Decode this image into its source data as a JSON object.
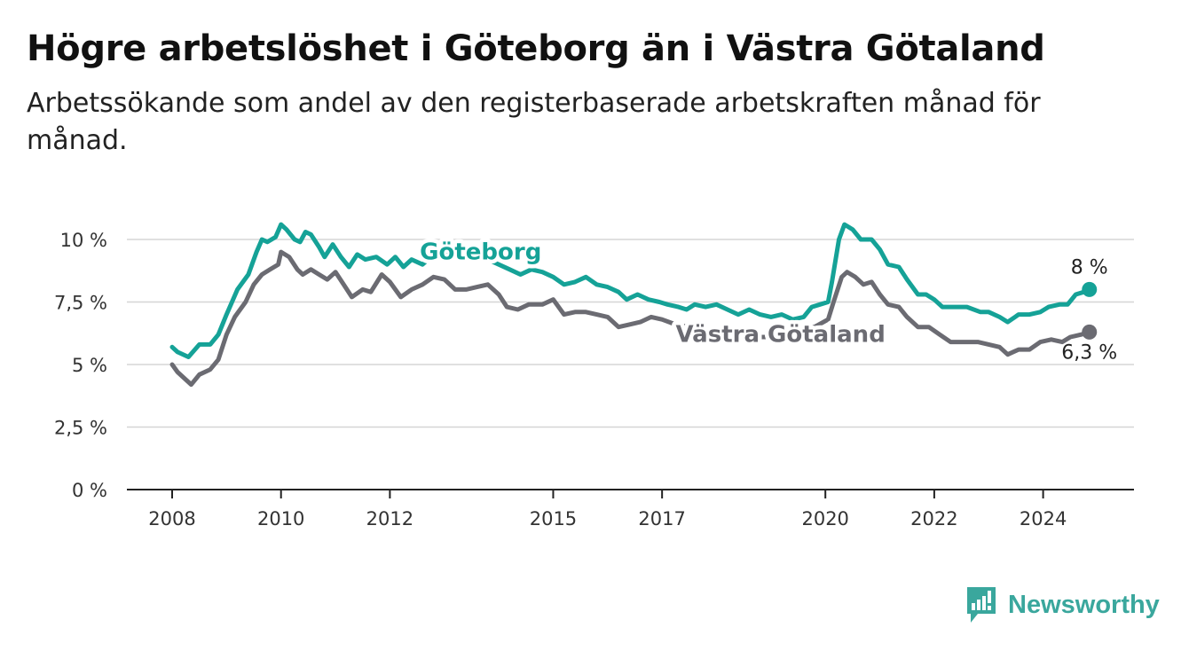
{
  "title": "Högre arbetslöshet i Göteborg än i Västra Götaland",
  "subtitle": "Arbetssökande som andel av den registerbaserade arbetskraften månad för månad.",
  "brand": {
    "name": "Newsworthy",
    "color": "#3aa79d"
  },
  "colors": {
    "goteborg": "#15a297",
    "vastra": "#6b6b72",
    "grid": "#d6d6d6",
    "axis": "#222222"
  },
  "chart_data": {
    "type": "line",
    "title": "Högre arbetslöshet i Göteborg än i Västra Götaland",
    "subtitle": "Arbetssökande som andel av den registerbaserade arbetskraften månad för månad.",
    "xlabel": "",
    "ylabel": "",
    "xlim": [
      2007.5,
      2025.8
    ],
    "ylim": [
      0,
      10
    ],
    "yticks": [
      0,
      2.5,
      5,
      7.5,
      10
    ],
    "ytick_labels": [
      "0 %",
      "2,5 %",
      "5 %",
      "7,5 %",
      "10 %"
    ],
    "xticks": [
      2008,
      2010,
      2012,
      2015,
      2017,
      2020,
      2022,
      2024
    ],
    "xtick_labels": [
      "2008",
      "2010",
      "2012",
      "2015",
      "2017",
      "2020",
      "2022",
      "2024"
    ],
    "grid": true,
    "series": [
      {
        "name": "Göteborg",
        "color": "#15a297",
        "end_label": "8 %",
        "points": [
          [
            2008.0,
            5.7
          ],
          [
            2008.1,
            5.5
          ],
          [
            2008.3,
            5.3
          ],
          [
            2008.5,
            5.8
          ],
          [
            2008.7,
            5.8
          ],
          [
            2008.85,
            6.2
          ],
          [
            2009.0,
            7.0
          ],
          [
            2009.2,
            8.0
          ],
          [
            2009.4,
            8.6
          ],
          [
            2009.55,
            9.5
          ],
          [
            2009.65,
            10.0
          ],
          [
            2009.75,
            9.9
          ],
          [
            2009.9,
            10.1
          ],
          [
            2010.0,
            10.6
          ],
          [
            2010.1,
            10.4
          ],
          [
            2010.25,
            10.0
          ],
          [
            2010.35,
            9.9
          ],
          [
            2010.45,
            10.3
          ],
          [
            2010.55,
            10.2
          ],
          [
            2010.7,
            9.7
          ],
          [
            2010.8,
            9.3
          ],
          [
            2010.95,
            9.8
          ],
          [
            2011.1,
            9.3
          ],
          [
            2011.25,
            8.9
          ],
          [
            2011.4,
            9.4
          ],
          [
            2011.55,
            9.2
          ],
          [
            2011.75,
            9.3
          ],
          [
            2011.95,
            9.0
          ],
          [
            2012.1,
            9.3
          ],
          [
            2012.25,
            8.9
          ],
          [
            2012.4,
            9.2
          ],
          [
            2012.6,
            9.0
          ],
          [
            2012.8,
            9.4
          ],
          [
            2013.0,
            9.3
          ],
          [
            2013.2,
            9.5
          ],
          [
            2013.4,
            9.6
          ],
          [
            2013.6,
            9.4
          ],
          [
            2013.8,
            9.2
          ],
          [
            2014.0,
            9.0
          ],
          [
            2014.2,
            8.8
          ],
          [
            2014.4,
            8.6
          ],
          [
            2014.6,
            8.8
          ],
          [
            2014.8,
            8.7
          ],
          [
            2015.0,
            8.5
          ],
          [
            2015.2,
            8.2
          ],
          [
            2015.4,
            8.3
          ],
          [
            2015.6,
            8.5
          ],
          [
            2015.8,
            8.2
          ],
          [
            2016.0,
            8.1
          ],
          [
            2016.2,
            7.9
          ],
          [
            2016.35,
            7.6
          ],
          [
            2016.55,
            7.8
          ],
          [
            2016.75,
            7.6
          ],
          [
            2016.95,
            7.5
          ],
          [
            2017.1,
            7.4
          ],
          [
            2017.3,
            7.3
          ],
          [
            2017.45,
            7.2
          ],
          [
            2017.6,
            7.4
          ],
          [
            2017.8,
            7.3
          ],
          [
            2018.0,
            7.4
          ],
          [
            2018.2,
            7.2
          ],
          [
            2018.4,
            7.0
          ],
          [
            2018.6,
            7.2
          ],
          [
            2018.8,
            7.0
          ],
          [
            2019.0,
            6.9
          ],
          [
            2019.2,
            7.0
          ],
          [
            2019.4,
            6.8
          ],
          [
            2019.6,
            6.9
          ],
          [
            2019.75,
            7.3
          ],
          [
            2019.9,
            7.4
          ],
          [
            2020.05,
            7.5
          ],
          [
            2020.12,
            8.3
          ],
          [
            2020.25,
            10.0
          ],
          [
            2020.35,
            10.6
          ],
          [
            2020.5,
            10.4
          ],
          [
            2020.65,
            10.0
          ],
          [
            2020.85,
            10.0
          ],
          [
            2021.0,
            9.6
          ],
          [
            2021.15,
            9.0
          ],
          [
            2021.35,
            8.9
          ],
          [
            2021.5,
            8.4
          ],
          [
            2021.7,
            7.8
          ],
          [
            2021.85,
            7.8
          ],
          [
            2022.0,
            7.6
          ],
          [
            2022.15,
            7.3
          ],
          [
            2022.35,
            7.3
          ],
          [
            2022.6,
            7.3
          ],
          [
            2022.85,
            7.1
          ],
          [
            2023.0,
            7.1
          ],
          [
            2023.2,
            6.9
          ],
          [
            2023.35,
            6.7
          ],
          [
            2023.55,
            7.0
          ],
          [
            2023.75,
            7.0
          ],
          [
            2023.95,
            7.1
          ],
          [
            2024.1,
            7.3
          ],
          [
            2024.3,
            7.4
          ],
          [
            2024.45,
            7.4
          ],
          [
            2024.6,
            7.8
          ],
          [
            2024.75,
            7.9
          ],
          [
            2024.85,
            8.0
          ]
        ]
      },
      {
        "name": "Västra Götaland",
        "color": "#6b6b72",
        "end_label": "6,3 %",
        "points": [
          [
            2008.0,
            5.0
          ],
          [
            2008.1,
            4.7
          ],
          [
            2008.35,
            4.2
          ],
          [
            2008.5,
            4.6
          ],
          [
            2008.7,
            4.8
          ],
          [
            2008.85,
            5.2
          ],
          [
            2009.0,
            6.2
          ],
          [
            2009.15,
            6.9
          ],
          [
            2009.35,
            7.5
          ],
          [
            2009.5,
            8.2
          ],
          [
            2009.65,
            8.6
          ],
          [
            2009.8,
            8.8
          ],
          [
            2009.95,
            9.0
          ],
          [
            2010.0,
            9.5
          ],
          [
            2010.15,
            9.3
          ],
          [
            2010.3,
            8.8
          ],
          [
            2010.4,
            8.6
          ],
          [
            2010.55,
            8.8
          ],
          [
            2010.7,
            8.6
          ],
          [
            2010.85,
            8.4
          ],
          [
            2011.0,
            8.7
          ],
          [
            2011.15,
            8.2
          ],
          [
            2011.3,
            7.7
          ],
          [
            2011.5,
            8.0
          ],
          [
            2011.65,
            7.9
          ],
          [
            2011.85,
            8.6
          ],
          [
            2012.0,
            8.3
          ],
          [
            2012.2,
            7.7
          ],
          [
            2012.4,
            8.0
          ],
          [
            2012.6,
            8.2
          ],
          [
            2012.8,
            8.5
          ],
          [
            2013.0,
            8.4
          ],
          [
            2013.2,
            8.0
          ],
          [
            2013.4,
            8.0
          ],
          [
            2013.6,
            8.1
          ],
          [
            2013.8,
            8.2
          ],
          [
            2014.0,
            7.8
          ],
          [
            2014.15,
            7.3
          ],
          [
            2014.35,
            7.2
          ],
          [
            2014.55,
            7.4
          ],
          [
            2014.8,
            7.4
          ],
          [
            2015.0,
            7.6
          ],
          [
            2015.2,
            7.0
          ],
          [
            2015.4,
            7.1
          ],
          [
            2015.6,
            7.1
          ],
          [
            2015.8,
            7.0
          ],
          [
            2016.0,
            6.9
          ],
          [
            2016.2,
            6.5
          ],
          [
            2016.4,
            6.6
          ],
          [
            2016.6,
            6.7
          ],
          [
            2016.8,
            6.9
          ],
          [
            2017.0,
            6.8
          ],
          [
            2017.25,
            6.6
          ],
          [
            2017.5,
            6.5
          ],
          [
            2017.75,
            6.4
          ],
          [
            2018.0,
            6.3
          ],
          [
            2018.3,
            6.2
          ],
          [
            2018.6,
            6.1
          ],
          [
            2018.9,
            6.1
          ],
          [
            2019.2,
            6.2
          ],
          [
            2019.5,
            6.4
          ],
          [
            2019.8,
            6.5
          ],
          [
            2020.05,
            6.8
          ],
          [
            2020.15,
            7.5
          ],
          [
            2020.3,
            8.5
          ],
          [
            2020.4,
            8.7
          ],
          [
            2020.55,
            8.5
          ],
          [
            2020.7,
            8.2
          ],
          [
            2020.85,
            8.3
          ],
          [
            2021.0,
            7.8
          ],
          [
            2021.15,
            7.4
          ],
          [
            2021.35,
            7.3
          ],
          [
            2021.5,
            6.9
          ],
          [
            2021.7,
            6.5
          ],
          [
            2021.9,
            6.5
          ],
          [
            2022.1,
            6.2
          ],
          [
            2022.3,
            5.9
          ],
          [
            2022.55,
            5.9
          ],
          [
            2022.8,
            5.9
          ],
          [
            2023.0,
            5.8
          ],
          [
            2023.2,
            5.7
          ],
          [
            2023.35,
            5.4
          ],
          [
            2023.55,
            5.6
          ],
          [
            2023.75,
            5.6
          ],
          [
            2023.95,
            5.9
          ],
          [
            2024.15,
            6.0
          ],
          [
            2024.35,
            5.9
          ],
          [
            2024.5,
            6.1
          ],
          [
            2024.7,
            6.2
          ],
          [
            2024.85,
            6.3
          ]
        ]
      }
    ]
  }
}
